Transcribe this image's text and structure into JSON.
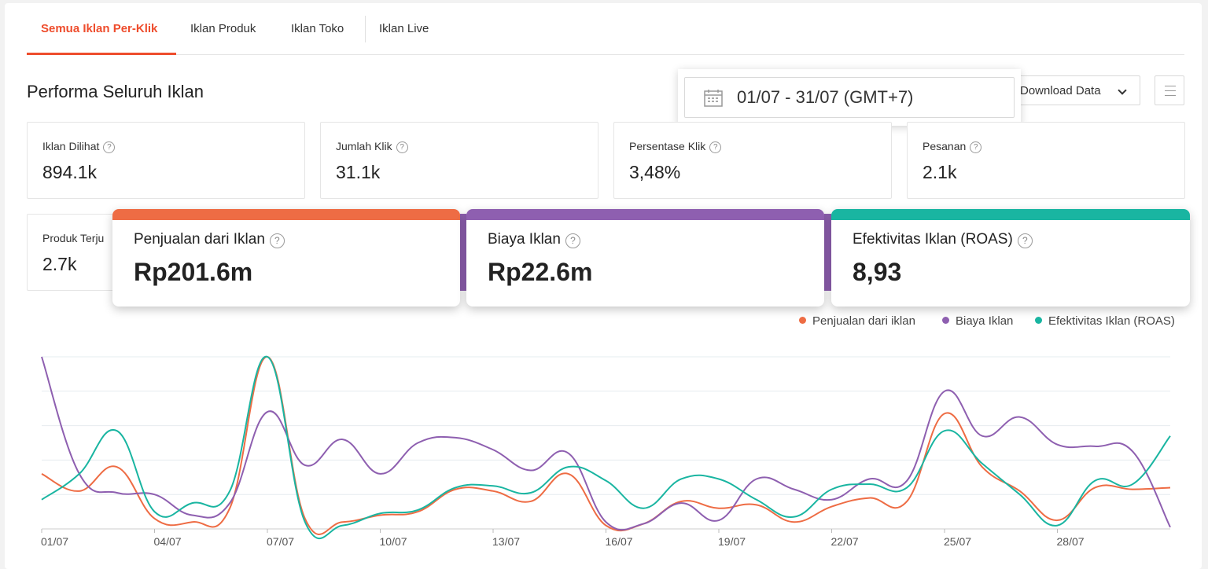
{
  "tabs": [
    {
      "label": "Semua Iklan Per-Klik",
      "active": true
    },
    {
      "label": "Iklan Produk",
      "active": false
    },
    {
      "label": "Iklan Toko",
      "active": false
    },
    {
      "label": "Iklan Live",
      "active": false
    }
  ],
  "section_title": "Performa Seluruh Iklan",
  "date_range": "01/07 - 31/07 (GMT+7)",
  "download_label": "Download Data",
  "help_glyph": "?",
  "metrics": [
    {
      "label": "Iklan Dilihat",
      "value": "894.1k"
    },
    {
      "label": "Jumlah Klik",
      "value": "31.1k"
    },
    {
      "label": "Persentase Klik",
      "value": "3,48%"
    },
    {
      "label": "Pesanan",
      "value": "2.1k"
    },
    {
      "label": "Produk Terju",
      "value": "2.7k"
    }
  ],
  "highlight_metrics": [
    {
      "label": "Penjualan dari Iklan",
      "value": "Rp201.6m",
      "color": "#ee6c44"
    },
    {
      "label": "Biaya Iklan",
      "value": "Rp22.6m",
      "color": "#8e5fb0"
    },
    {
      "label": "Efektivitas Iklan (ROAS)",
      "value": "8,93",
      "color": "#19b5a1"
    }
  ],
  "chart_data": {
    "type": "line",
    "x": [
      "01/07",
      "02/07",
      "03/07",
      "04/07",
      "05/07",
      "06/07",
      "07/07",
      "08/07",
      "09/07",
      "10/07",
      "11/07",
      "12/07",
      "13/07",
      "14/07",
      "15/07",
      "16/07",
      "17/07",
      "18/07",
      "19/07",
      "20/07",
      "21/07",
      "22/07",
      "23/07",
      "24/07",
      "25/07",
      "26/07",
      "27/07",
      "28/07",
      "29/07",
      "30/07",
      "31/07"
    ],
    "x_tick_labels": [
      "01/07",
      "04/07",
      "07/07",
      "10/07",
      "13/07",
      "16/07",
      "19/07",
      "22/07",
      "25/07",
      "28/07"
    ],
    "grid": true,
    "legend_position": "top-right",
    "series": [
      {
        "name": "Penjualan dari iklan",
        "color": "#ee6c44",
        "values": [
          0.32,
          0.22,
          0.36,
          0.06,
          0.04,
          0.12,
          1.0,
          0.06,
          0.04,
          0.08,
          0.1,
          0.23,
          0.22,
          0.16,
          0.32,
          0.02,
          0.03,
          0.16,
          0.12,
          0.14,
          0.04,
          0.13,
          0.18,
          0.16,
          0.67,
          0.36,
          0.22,
          0.05,
          0.24,
          0.23,
          0.24
        ]
      },
      {
        "name": "Biaya Iklan",
        "color": "#8e5fb0",
        "values": [
          1.0,
          0.32,
          0.21,
          0.2,
          0.08,
          0.15,
          0.68,
          0.37,
          0.52,
          0.32,
          0.5,
          0.53,
          0.46,
          0.34,
          0.44,
          0.04,
          0.03,
          0.15,
          0.05,
          0.29,
          0.23,
          0.17,
          0.29,
          0.28,
          0.8,
          0.54,
          0.65,
          0.49,
          0.48,
          0.45,
          0.01
        ]
      },
      {
        "name": "Efektivitas Iklan (ROAS)",
        "color": "#19b5a1",
        "values": [
          0.17,
          0.32,
          0.57,
          0.1,
          0.15,
          0.22,
          1.0,
          0.04,
          0.02,
          0.09,
          0.11,
          0.24,
          0.25,
          0.21,
          0.36,
          0.28,
          0.12,
          0.29,
          0.29,
          0.17,
          0.07,
          0.23,
          0.26,
          0.24,
          0.57,
          0.38,
          0.2,
          0.02,
          0.28,
          0.26,
          0.54
        ]
      }
    ]
  }
}
